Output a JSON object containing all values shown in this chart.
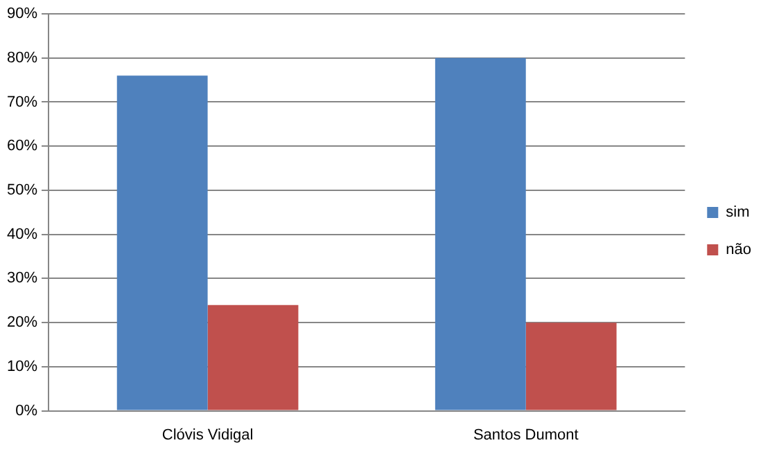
{
  "chart_data": {
    "type": "bar",
    "categories": [
      "Clóvis Vidigal",
      "Santos Dumont"
    ],
    "series": [
      {
        "name": "sim",
        "color": "#4f81bd",
        "values": [
          76,
          80
        ]
      },
      {
        "name": "não",
        "color": "#c0504d",
        "values": [
          24,
          20
        ]
      }
    ],
    "ylim": [
      0,
      90
    ],
    "yticks": [
      {
        "value": 0,
        "label": "0%"
      },
      {
        "value": 10,
        "label": "10%"
      },
      {
        "value": 20,
        "label": "20%"
      },
      {
        "value": 30,
        "label": "30%"
      },
      {
        "value": 40,
        "label": "40%"
      },
      {
        "value": 50,
        "label": "50%"
      },
      {
        "value": 60,
        "label": "60%"
      },
      {
        "value": 70,
        "label": "70%"
      },
      {
        "value": 80,
        "label": "80%"
      },
      {
        "value": 90,
        "label": "90%"
      }
    ],
    "grid": "y",
    "legend": "right"
  }
}
